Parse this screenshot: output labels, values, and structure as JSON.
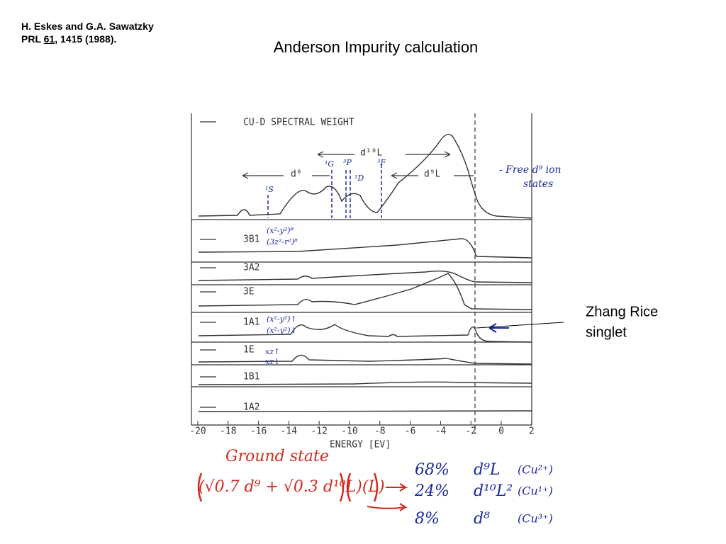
{
  "citation": {
    "authors": "H. Eskes and G.A. Sawatzky",
    "journal": "PRL",
    "volume": "61",
    "rest": ", 1415 (1988)."
  },
  "title": "Anderson Impurity calculation",
  "figure": {
    "top_panel": "CU-D SPECTRAL WEIGHT",
    "panels": [
      "3B1",
      "3A2",
      "3E",
      "1A1",
      "1E",
      "1B1",
      "1A2"
    ],
    "xticks": [
      -20,
      -18,
      -16,
      -14,
      -12,
      -10,
      -8,
      -6,
      -4,
      -2,
      0,
      2
    ],
    "xlabel": "ENERGY [EV]"
  },
  "annotations": {
    "d8": "d⁸",
    "d10L": "d¹⁰L",
    "d9L": "d⁹L",
    "free_ion": "- Free d⁹ ion",
    "states": "states",
    "multiplets": [
      "¹S",
      "¹G",
      "³P",
      "¹D",
      "³F"
    ],
    "b1_orbitals": [
      "(x²-y²)⁸",
      "(3z²-r²)⁸"
    ],
    "a1_orbitals": [
      "(x²-y²)↑",
      "(x²-y²)↓"
    ],
    "e_orbitals": [
      "xz↑",
      "xz↓"
    ]
  },
  "ground_state": {
    "label": "Ground state",
    "formula": "(√0.7 d⁹ + √0.3 d¹⁰L)(L)",
    "rows": [
      [
        "68%",
        "d⁹L",
        "(Cu²⁺)"
      ],
      [
        "24%",
        "d¹⁰L²",
        "(Cu¹⁺)"
      ],
      [
        "8%",
        "d⁸",
        "(Cu³⁺)"
      ]
    ]
  },
  "callout": {
    "line1": "Zhang Rice",
    "line2": "singlet"
  }
}
